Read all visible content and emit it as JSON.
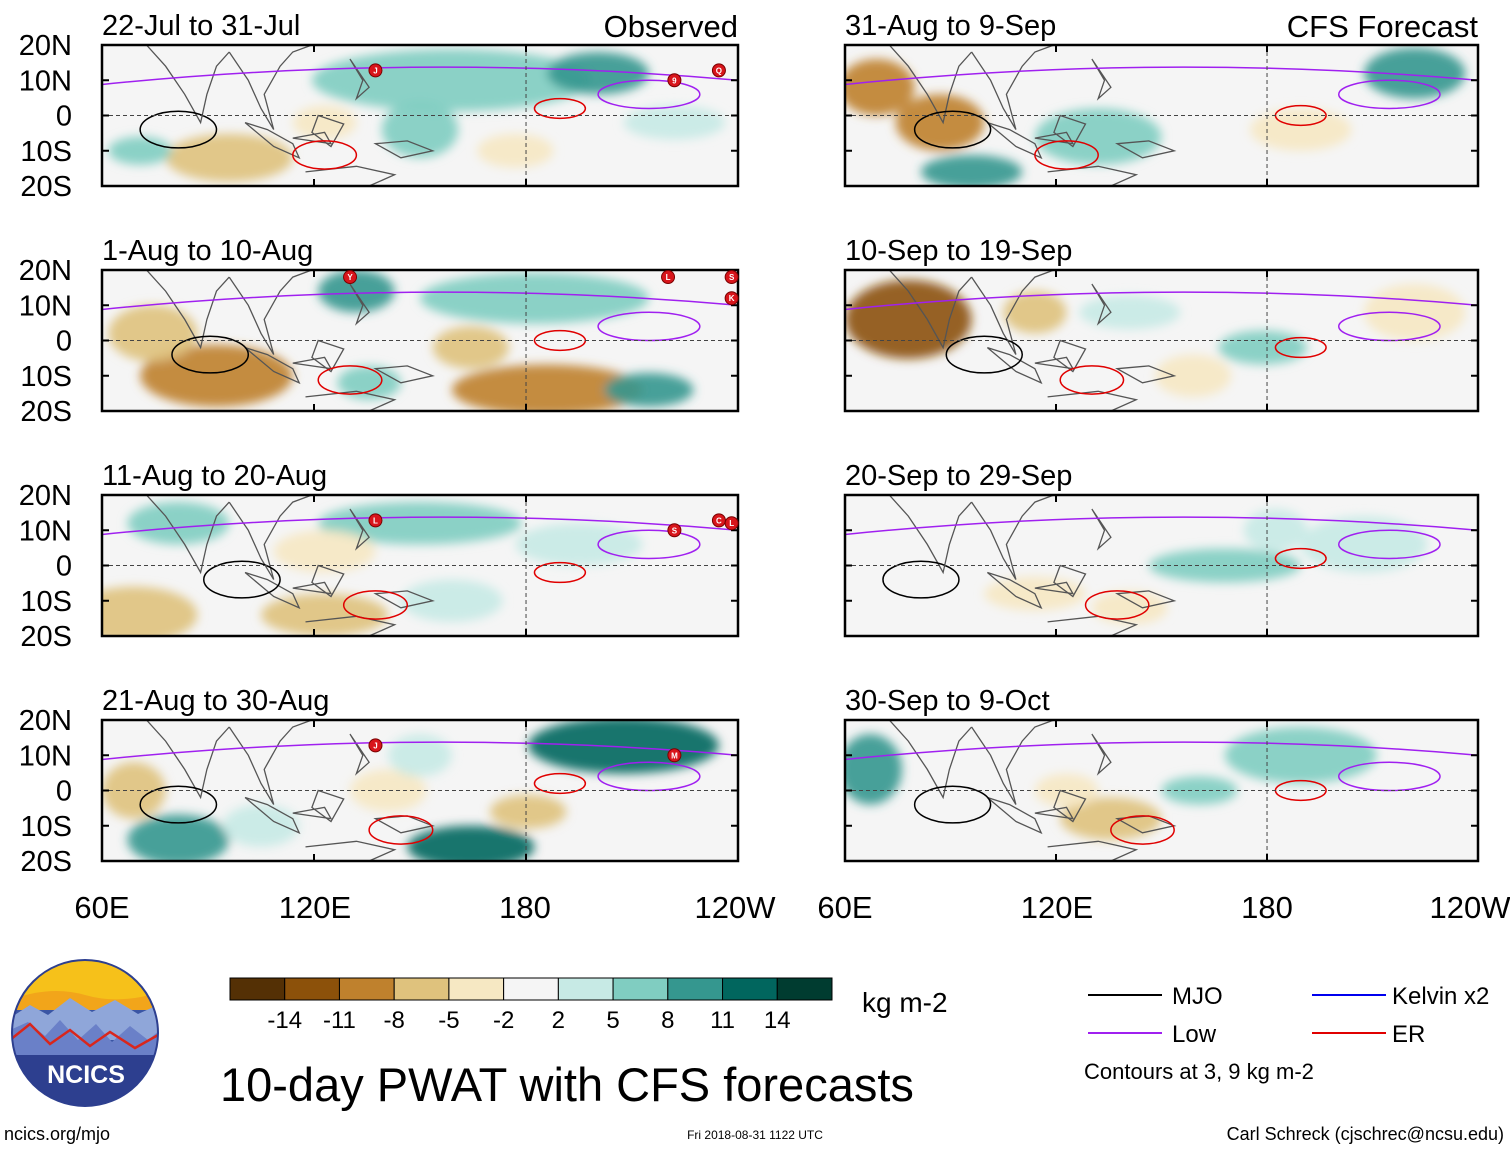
{
  "figure": {
    "title": "10-day PWAT with CFS forecasts",
    "source_url": "ncics.org/mjo",
    "timestamp": "Fri 2018-08-31 1122 UTC",
    "credit": "Carl Schreck (cjschrec@ncsu.edu)",
    "logo_text": "NCICS",
    "observed_label": "Observed",
    "forecast_label": "CFS Forecast"
  },
  "axes": {
    "lat_ticks": [
      "20N",
      "10N",
      "0",
      "10S",
      "20S"
    ],
    "lon_ticks": [
      "60E",
      "120E",
      "180",
      "120W"
    ]
  },
  "panels": {
    "observed": [
      "22-Jul to 31-Jul",
      "1-Aug to 10-Aug",
      "11-Aug to 20-Aug",
      "21-Aug to 30-Aug"
    ],
    "forecast": [
      "31-Aug to 9-Sep",
      "10-Sep to 19-Sep",
      "20-Sep to 29-Sep",
      "30-Sep to 9-Oct"
    ]
  },
  "colorbar": {
    "unit": "kg m-2",
    "labels": [
      "-14",
      "-11",
      "-8",
      "-5",
      "-2",
      "2",
      "5",
      "8",
      "11",
      "14"
    ],
    "colors": [
      "#543005",
      "#8c510a",
      "#bf812d",
      "#dfc27d",
      "#f6e8c3",
      "#f5f5f5",
      "#c7eae5",
      "#80cdc1",
      "#35978f",
      "#01665e",
      "#003c30"
    ]
  },
  "legend": {
    "items": [
      {
        "label": "MJO",
        "color": "#000000"
      },
      {
        "label": "Kelvin x2",
        "color": "#0000ee"
      },
      {
        "label": "Low",
        "color": "#a020f0"
      },
      {
        "label": "ER",
        "color": "#e00000"
      }
    ],
    "note": "Contours at 3, 9 kg m-2"
  },
  "storms": [
    [
      "J",
      "9",
      "Q"
    ],
    [
      "Y",
      "L",
      "S",
      "K"
    ],
    [
      "L",
      "S",
      "C",
      "L"
    ],
    [
      "J",
      "M"
    ]
  ]
}
